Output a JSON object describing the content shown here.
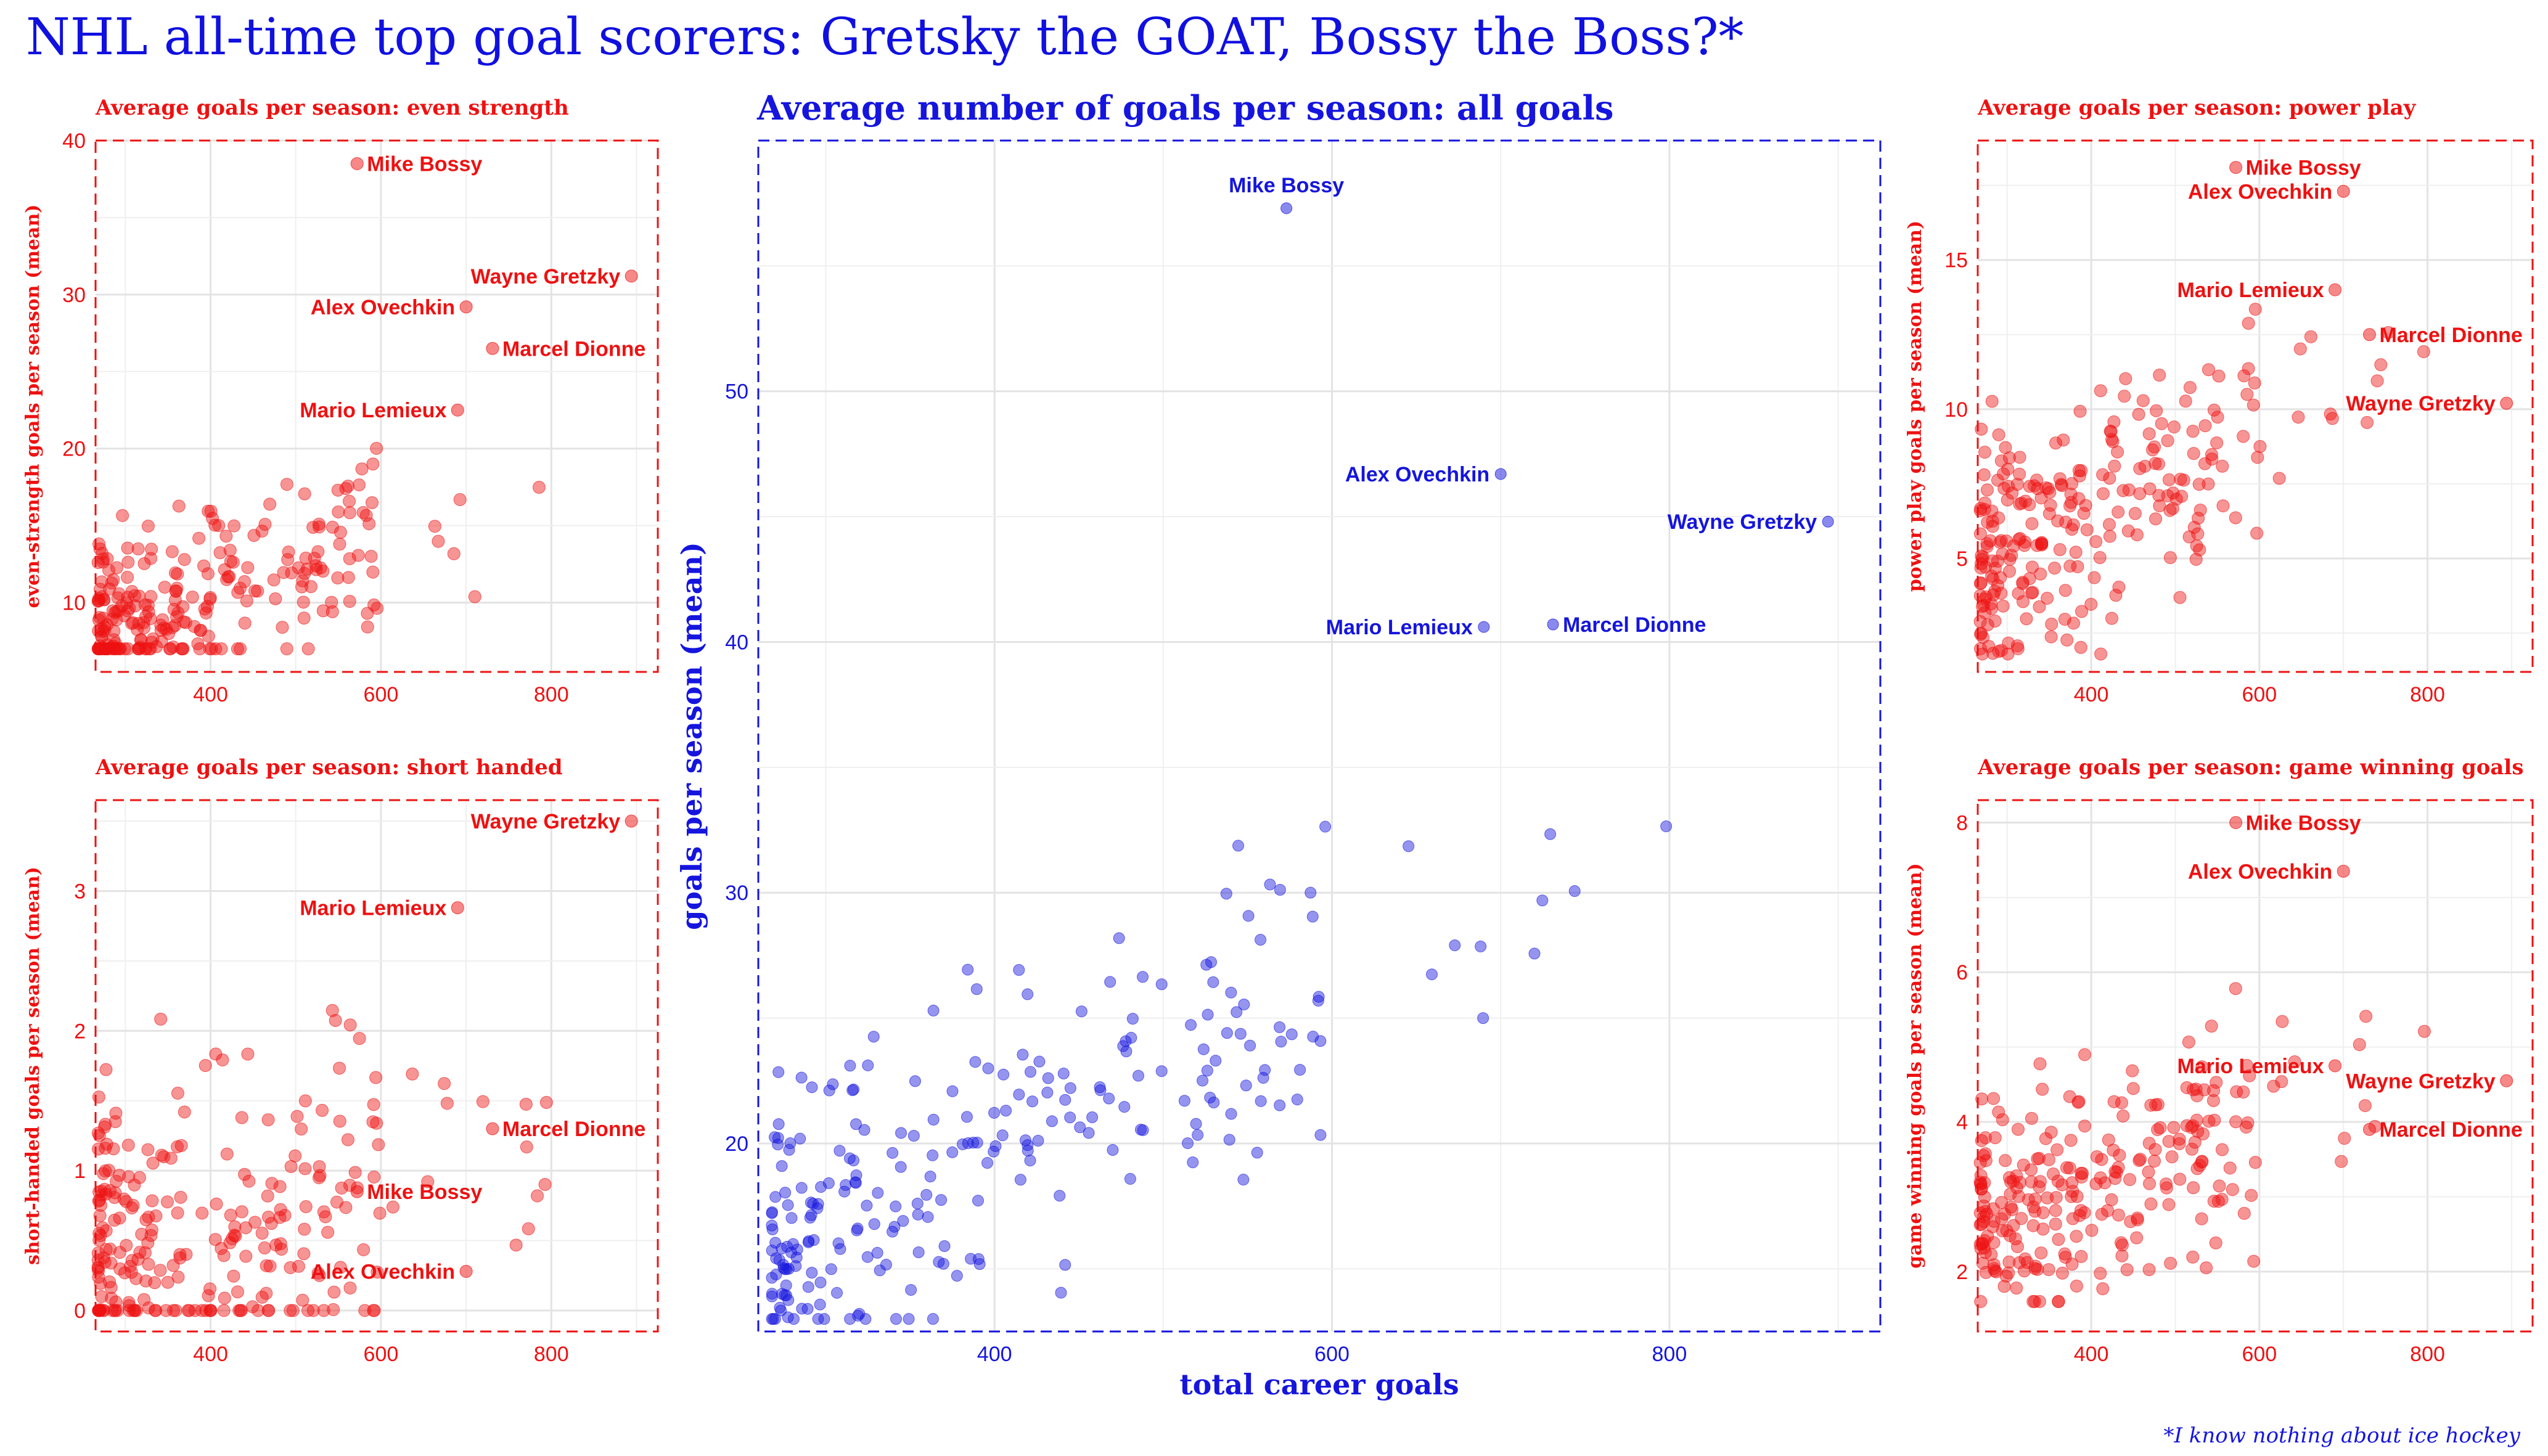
{
  "title": "NHL all-time top goal scorers: Gretsky the GOAT, Bossy the Boss?*",
  "footnote": "*I know nothing about ice hockey",
  "colors": {
    "red": "#ee1111",
    "blue": "#1515dd"
  },
  "chart_data": [
    {
      "id": "even",
      "type": "scatter",
      "title": "Average goals per season: even strength",
      "xlabel": "",
      "ylabel": "even-strength goals per season (mean)",
      "xlim": [
        265,
        925
      ],
      "ylim": [
        5.5,
        40
      ],
      "xticks": [
        400,
        600,
        800
      ],
      "yticks": [
        10,
        20,
        30,
        40
      ],
      "annotations": [
        {
          "name": "Mike Bossy",
          "x": 572,
          "y": 38.5
        },
        {
          "name": "Wayne Gretzky",
          "x": 894,
          "y": 31.2
        },
        {
          "name": "Alex Ovechkin",
          "x": 700,
          "y": 29.2
        },
        {
          "name": "Marcel Dionne",
          "x": 731,
          "y": 26.5
        },
        {
          "name": "Mario Lemieux",
          "x": 690,
          "y": 22.5
        }
      ]
    },
    {
      "id": "short",
      "type": "scatter",
      "title": "Average goals per season: short handed",
      "xlabel": "",
      "ylabel": "short-handed goals per season (mean)",
      "xlim": [
        265,
        925
      ],
      "ylim": [
        -0.15,
        3.65
      ],
      "xticks": [
        400,
        600,
        800
      ],
      "yticks": [
        0,
        1,
        2,
        3
      ],
      "annotations": [
        {
          "name": "Wayne Gretzky",
          "x": 894,
          "y": 3.5
        },
        {
          "name": "Mario Lemieux",
          "x": 690,
          "y": 2.88
        },
        {
          "name": "Marcel Dionne",
          "x": 731,
          "y": 1.3
        },
        {
          "name": "Mike Bossy",
          "x": 572,
          "y": 0.85
        },
        {
          "name": "Alex Ovechkin",
          "x": 700,
          "y": 0.28
        }
      ]
    },
    {
      "id": "all",
      "type": "scatter",
      "title": "Average number of goals per season: all goals",
      "xlabel": "total career goals",
      "ylabel": "goals per season (mean)",
      "xlim": [
        260,
        925
      ],
      "ylim": [
        12.5,
        60
      ],
      "xticks": [
        400,
        600,
        800
      ],
      "yticks": [
        20,
        30,
        40,
        50
      ],
      "annotations": [
        {
          "name": "Mike Bossy",
          "x": 573,
          "y": 57.3
        },
        {
          "name": "Alex Ovechkin",
          "x": 700,
          "y": 46.7
        },
        {
          "name": "Wayne Gretzky",
          "x": 894,
          "y": 44.8
        },
        {
          "name": "Marcel Dionne",
          "x": 731,
          "y": 40.7
        },
        {
          "name": "Mario Lemieux",
          "x": 690,
          "y": 40.6
        }
      ]
    },
    {
      "id": "pp",
      "type": "scatter",
      "title": "Average goals per season: power play",
      "xlabel": "",
      "ylabel": "power play goals per season (mean)",
      "xlim": [
        265,
        925
      ],
      "ylim": [
        1.2,
        19
      ],
      "xticks": [
        400,
        600,
        800
      ],
      "yticks": [
        5,
        10,
        15
      ],
      "annotations": [
        {
          "name": "Mike Bossy",
          "x": 572,
          "y": 18.1
        },
        {
          "name": "Alex Ovechkin",
          "x": 700,
          "y": 17.3
        },
        {
          "name": "Mario Lemieux",
          "x": 690,
          "y": 14.0
        },
        {
          "name": "Marcel Dionne",
          "x": 731,
          "y": 12.5
        },
        {
          "name": "Wayne Gretzky",
          "x": 894,
          "y": 10.2
        }
      ]
    },
    {
      "id": "gw",
      "type": "scatter",
      "title": "Average goals per season: game winning goals",
      "xlabel": "",
      "ylabel": "game winning goals per season (mean)",
      "xlim": [
        265,
        925
      ],
      "ylim": [
        1.2,
        8.3
      ],
      "xticks": [
        400,
        600,
        800
      ],
      "yticks": [
        2,
        4,
        6,
        8
      ],
      "annotations": [
        {
          "name": "Mike Bossy",
          "x": 572,
          "y": 8.0
        },
        {
          "name": "Alex Ovechkin",
          "x": 700,
          "y": 7.35
        },
        {
          "name": "Mario Lemieux",
          "x": 690,
          "y": 4.75
        },
        {
          "name": "Wayne Gretzky",
          "x": 894,
          "y": 4.55
        },
        {
          "name": "Marcel Dionne",
          "x": 731,
          "y": 3.9
        }
      ]
    }
  ]
}
